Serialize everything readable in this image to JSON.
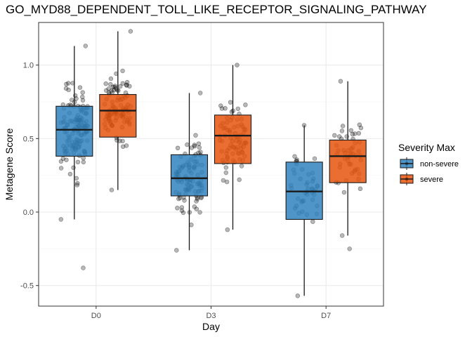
{
  "chart_data": {
    "type": "box",
    "title": "GO_MYD88_DEPENDENT_TOLL_LIKE_RECEPTOR_SIGNALING_PATHWAY",
    "xlabel": "Day",
    "ylabel": "Metagene Score",
    "categories": [
      "D0",
      "D3",
      "D7"
    ],
    "ylim": [
      -0.64,
      1.29
    ],
    "y_ticks": [
      {
        "value": -0.5,
        "label": "-0.5"
      },
      {
        "value": 0.0,
        "label": "0.0"
      },
      {
        "value": 0.5,
        "label": "0.5"
      },
      {
        "value": 1.0,
        "label": "1.0"
      }
    ],
    "grid": true,
    "legend": {
      "title": "Severity Max",
      "position": "right"
    },
    "series": [
      {
        "name": "non-severe",
        "color": "#3182BD",
        "boxes": [
          {
            "category": "D0",
            "min": -0.05,
            "q1": 0.38,
            "median": 0.56,
            "q3": 0.72,
            "max": 1.13,
            "n": 140,
            "outliers": [
              -0.38
            ]
          },
          {
            "category": "D3",
            "min": -0.26,
            "q1": 0.11,
            "median": 0.23,
            "q3": 0.39,
            "max": 0.81,
            "n": 100,
            "outliers": []
          },
          {
            "category": "D7",
            "min": -0.57,
            "q1": -0.05,
            "median": 0.14,
            "q3": 0.34,
            "max": 0.59,
            "n": 45,
            "outliers": []
          }
        ]
      },
      {
        "name": "severe",
        "color": "#E6550D",
        "boxes": [
          {
            "category": "D0",
            "min": 0.15,
            "q1": 0.51,
            "median": 0.69,
            "q3": 0.8,
            "max": 1.23,
            "n": 100,
            "outliers": []
          },
          {
            "category": "D3",
            "min": -0.12,
            "q1": 0.33,
            "median": 0.52,
            "q3": 0.66,
            "max": 1.0,
            "n": 80,
            "outliers": []
          },
          {
            "category": "D7",
            "min": -0.16,
            "q1": 0.2,
            "median": 0.38,
            "q3": 0.49,
            "max": 0.89,
            "n": 50,
            "outliers": [
              -0.25
            ]
          }
        ]
      }
    ]
  }
}
